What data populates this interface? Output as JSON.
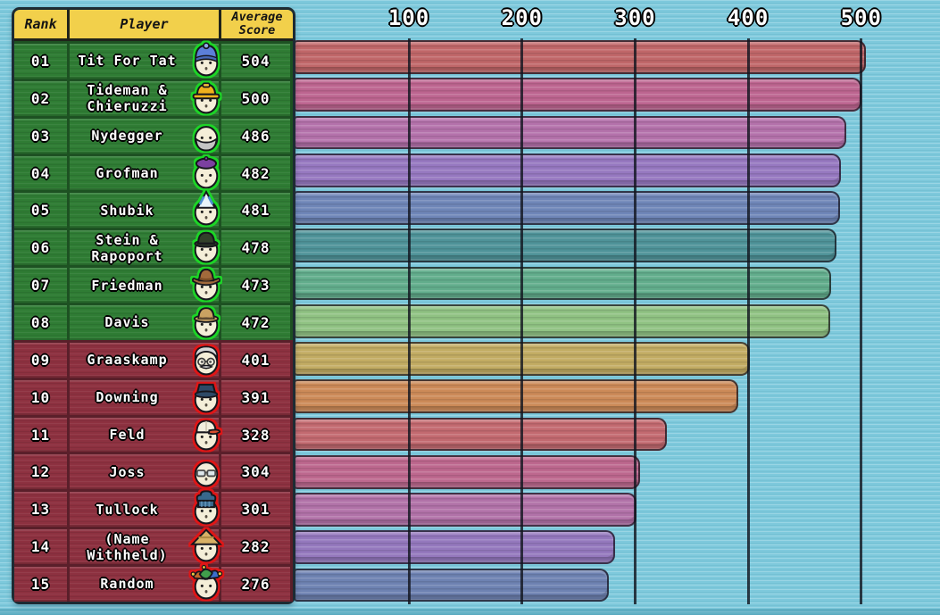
{
  "table": {
    "headers": {
      "rank": "Rank",
      "player": "Player",
      "score": "Average Score"
    },
    "rows": [
      {
        "rank": "01",
        "player": "Tit For Tat",
        "score": "504",
        "value": 504,
        "group": "green",
        "avatar": "blue-beanie",
        "bar_color": "#c06769"
      },
      {
        "rank": "02",
        "player": "Tideman &\nChieruzzi",
        "score": "500",
        "value": 500,
        "group": "green",
        "avatar": "hard-hat",
        "bar_color": "#bd6590"
      },
      {
        "rank": "03",
        "player": "Nydegger",
        "score": "486",
        "value": 486,
        "group": "green",
        "avatar": "gray-beard",
        "bar_color": "#b472ab"
      },
      {
        "rank": "04",
        "player": "Grofman",
        "score": "482",
        "value": 482,
        "group": "green",
        "avatar": "purple-beret",
        "bar_color": "#9678c0"
      },
      {
        "rank": "05",
        "player": "Shubik",
        "score": "481",
        "value": 481,
        "group": "green",
        "avatar": "party-hat",
        "bar_color": "#6f86b8"
      },
      {
        "rank": "06",
        "player": "Stein &\nRapoport",
        "score": "478",
        "value": 478,
        "group": "green",
        "avatar": "dark-fedora",
        "bar_color": "#4f9399"
      },
      {
        "rank": "07",
        "player": "Friedman",
        "score": "473",
        "value": 473,
        "group": "green",
        "avatar": "cowboy-hat",
        "bar_color": "#62ad8c"
      },
      {
        "rank": "08",
        "player": "Davis",
        "score": "472",
        "value": 472,
        "group": "green",
        "avatar": "tan-fedora",
        "bar_color": "#90c283"
      },
      {
        "rank": "09",
        "player": "Graaskamp",
        "score": "401",
        "value": 401,
        "group": "red",
        "avatar": "elderly-glasses",
        "bar_color": "#c2ac63"
      },
      {
        "rank": "10",
        "player": "Downing",
        "score": "391",
        "value": 391,
        "group": "red",
        "avatar": "bucket-hat",
        "bar_color": "#cc8a58"
      },
      {
        "rank": "11",
        "player": "Feld",
        "score": "328",
        "value": 328,
        "group": "red",
        "avatar": "baseball-cap",
        "bar_color": "#c36a70"
      },
      {
        "rank": "12",
        "player": "Joss",
        "score": "304",
        "value": 304,
        "group": "red",
        "avatar": "glasses",
        "bar_color": "#bd688e"
      },
      {
        "rank": "13",
        "player": "Tullock",
        "score": "301",
        "value": 301,
        "group": "red",
        "avatar": "chef-toque",
        "bar_color": "#b172a8"
      },
      {
        "rank": "14",
        "player": "(Name\nWithheld)",
        "score": "282",
        "value": 282,
        "group": "red",
        "avatar": "straw-hat",
        "bar_color": "#9478bd"
      },
      {
        "rank": "15",
        "player": "Random",
        "score": "276",
        "value": 276,
        "group": "red",
        "avatar": "jester-hat",
        "bar_color": "#6e82b2"
      }
    ]
  },
  "axis": {
    "ticks": [
      "100",
      "200",
      "300",
      "400",
      "500"
    ],
    "tick_values": [
      100,
      200,
      300,
      400,
      500
    ]
  },
  "palette": {
    "background": "#7ec9dc",
    "header_bg": "#f2d04b",
    "green_row_bg": "#2f7c34",
    "green_row_border": "#1d5122",
    "red_row_bg": "#8d3140",
    "red_row_border": "#5a1f2a",
    "gridline": "#121620",
    "avatar_ring_green": "#1fd628",
    "avatar_ring_red": "#e01212"
  },
  "chart_data": {
    "type": "bar",
    "orientation": "horizontal",
    "categories": [
      "Tit For Tat",
      "Tideman & Chieruzzi",
      "Nydegger",
      "Grofman",
      "Shubik",
      "Stein & Rapoport",
      "Friedman",
      "Davis",
      "Graaskamp",
      "Downing",
      "Feld",
      "Joss",
      "Tullock",
      "(Name Withheld)",
      "Random"
    ],
    "values": [
      504,
      500,
      486,
      482,
      481,
      478,
      473,
      472,
      401,
      391,
      328,
      304,
      301,
      282,
      276
    ],
    "ranks": [
      "01",
      "02",
      "03",
      "04",
      "05",
      "06",
      "07",
      "08",
      "09",
      "10",
      "11",
      "12",
      "13",
      "14",
      "15"
    ],
    "title": "",
    "xlabel": "",
    "ylabel": "",
    "xlim": [
      0,
      570
    ],
    "xticks": [
      100,
      200,
      300,
      400,
      500
    ],
    "grid": true,
    "legend": false
  }
}
